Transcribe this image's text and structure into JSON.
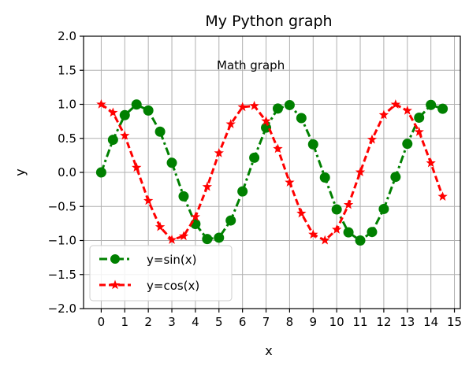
{
  "chart_data": {
    "type": "line",
    "title": "My Python graph",
    "annotation": "Math graph",
    "xlabel": "x",
    "ylabel": "y",
    "xlim": [
      -0.75,
      15.25
    ],
    "ylim": [
      -2.0,
      2.0
    ],
    "xticks": [
      0,
      1,
      2,
      3,
      4,
      5,
      6,
      7,
      8,
      9,
      10,
      11,
      12,
      13,
      14,
      15
    ],
    "xtick_labels": [
      "0",
      "1",
      "2",
      "3",
      "4",
      "5",
      "6",
      "7",
      "8",
      "9",
      "10",
      "11",
      "12",
      "13",
      "14",
      "15"
    ],
    "yticks": [
      -2.0,
      -1.5,
      -1.0,
      -0.5,
      0.0,
      0.5,
      1.0,
      1.5,
      2.0
    ],
    "ytick_labels": [
      "−2.0",
      "−1.5",
      "−1.0",
      "−0.5",
      "0.0",
      "0.5",
      "1.0",
      "1.5",
      "2.0"
    ],
    "grid": true,
    "legend_position": "lower-left",
    "x": [
      0,
      0.5,
      1,
      1.5,
      2,
      2.5,
      3,
      3.5,
      4,
      4.5,
      5,
      5.5,
      6,
      6.5,
      7,
      7.5,
      8,
      8.5,
      9,
      9.5,
      10,
      10.5,
      11,
      11.5,
      12,
      12.5,
      13,
      13.5,
      14,
      14.5
    ],
    "series": [
      {
        "name": "y=sin(x)",
        "color": "#008000",
        "marker": "circle",
        "linestyle": "dash-dot",
        "values": [
          0.0,
          0.479,
          0.841,
          0.997,
          0.909,
          0.598,
          0.141,
          -0.351,
          -0.757,
          -0.978,
          -0.959,
          -0.706,
          -0.279,
          0.215,
          0.657,
          0.938,
          0.989,
          0.798,
          0.412,
          -0.075,
          -0.544,
          -0.88,
          -1.0,
          -0.875,
          -0.537,
          -0.066,
          0.42,
          0.804,
          0.991,
          0.935
        ]
      },
      {
        "name": "y=cos(x)",
        "color": "#ff0000",
        "marker": "star",
        "linestyle": "dashed",
        "values": [
          1.0,
          0.878,
          0.54,
          0.071,
          -0.416,
          -0.801,
          -0.99,
          -0.936,
          -0.654,
          -0.211,
          0.284,
          0.709,
          0.96,
          0.977,
          0.754,
          0.347,
          -0.146,
          -0.602,
          -0.911,
          -0.997,
          -0.839,
          -0.476,
          0.004,
          0.483,
          0.844,
          0.998,
          0.907,
          0.595,
          0.137,
          -0.355
        ]
      }
    ]
  }
}
